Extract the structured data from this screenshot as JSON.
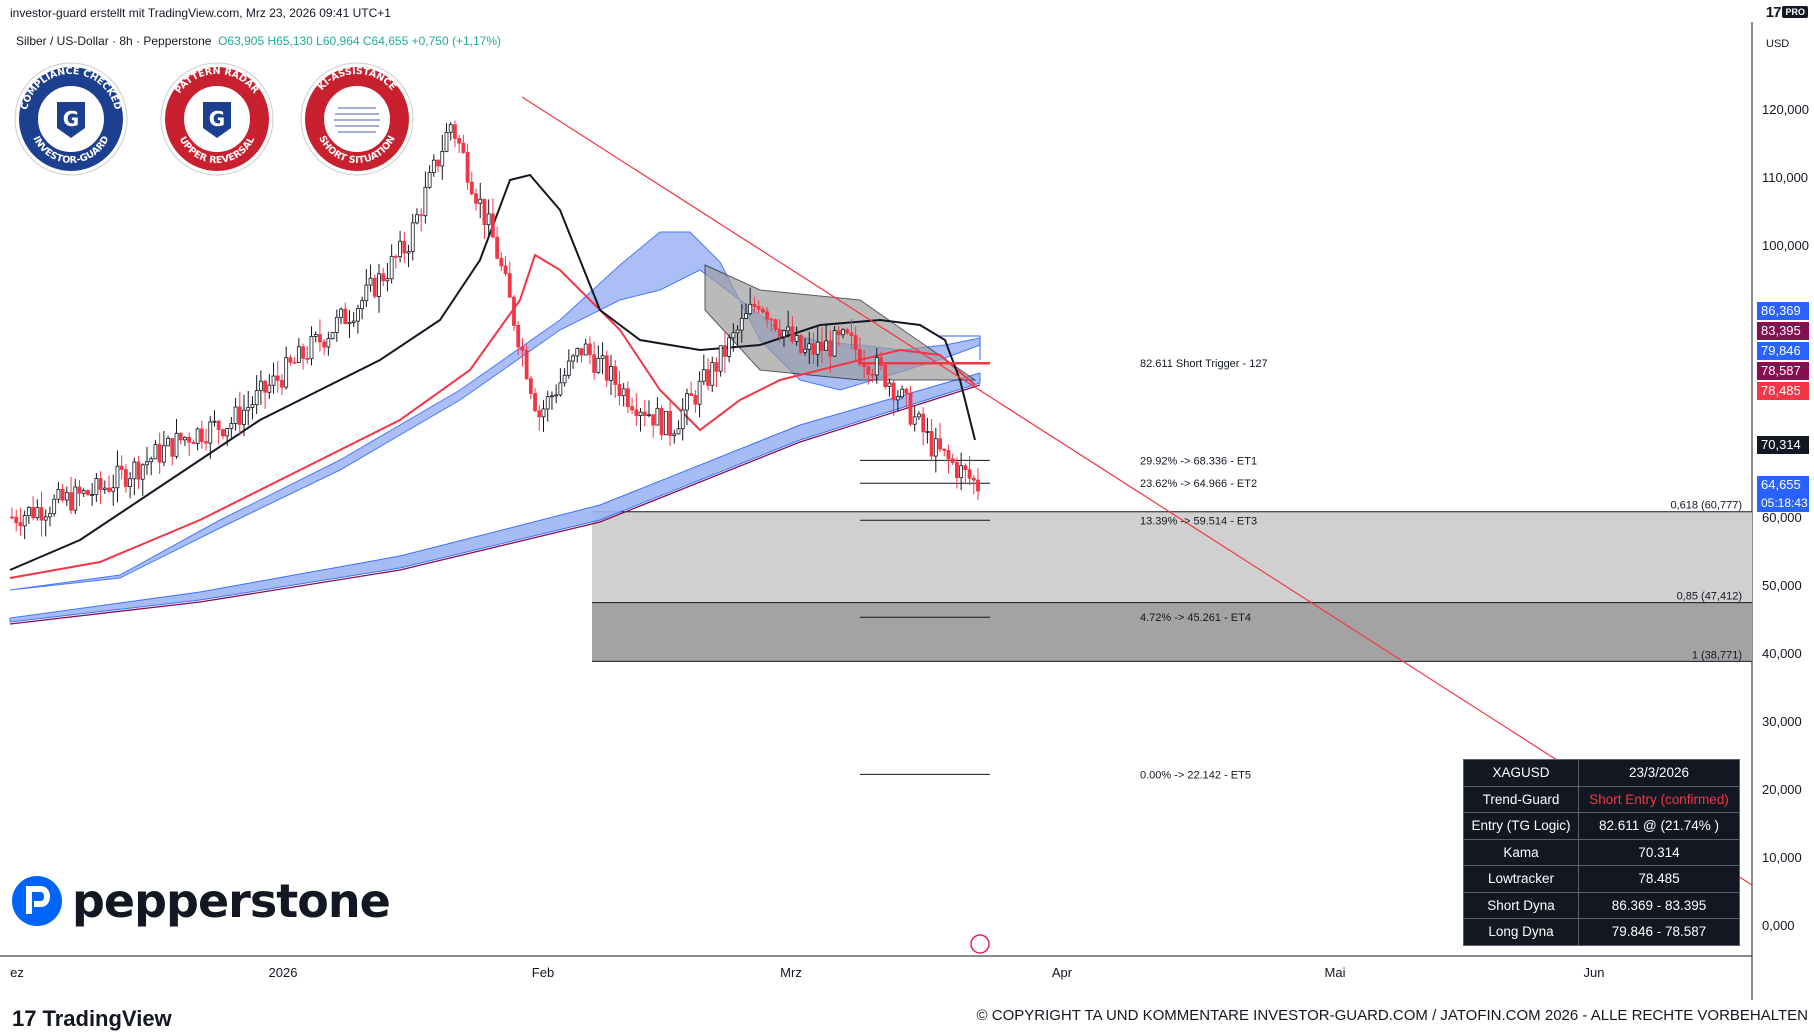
{
  "header": {
    "attribution": "investor-guard erstellt mit TradingView.com, Mrz 23, 2026 09:41 UTC+1",
    "symbol": "Silber / US-Dollar · 8h · Pepperstone",
    "ohlc": "O63,905  H65,130  L60,964  C64,655  +0,750 (+1,17%)",
    "currency": "USD",
    "tv_pro_label": "PRO"
  },
  "badges": [
    {
      "top_text": "COMPLIANCE CHECKED",
      "bottom_text": "INVESTOR-GUARD",
      "ring_color": "#1c3f8f"
    },
    {
      "top_text": "PATTERN RADAR",
      "bottom_text": "UPPER REVERSAL",
      "ring_color": "#c8202e"
    },
    {
      "top_text": "KI-ASSISTANCE",
      "bottom_text": "SHORT SITUATION",
      "ring_color": "#c8202e"
    }
  ],
  "chart_data": {
    "type": "candlestick",
    "title": "",
    "y_tick_labels": [
      "120,000",
      "110,000",
      "100,000",
      "60,000",
      "50,000",
      "40,000",
      "30,000",
      "20,000",
      "10,000",
      "0,000"
    ],
    "x_tick_labels": [
      "ez",
      "2026",
      "Feb",
      "Mrz",
      "Apr",
      "Mai",
      "Jun"
    ],
    "ylim": [
      -3,
      128
    ],
    "price_tags": [
      {
        "label": "86,369",
        "value": 86.369,
        "color": "#2962ff"
      },
      {
        "label": "83,395",
        "value": 83.395,
        "color": "#880e4f"
      },
      {
        "label": "79,846",
        "value": 79.846,
        "color": "#2962ff"
      },
      {
        "label": "78,587",
        "value": 78.587,
        "color": "#880e4f"
      },
      {
        "label": "78,485",
        "value": 78.485,
        "color": "#f23645"
      },
      {
        "label": "70,314",
        "value": 70.314,
        "color": "#131722"
      },
      {
        "label": "64,655",
        "value": 64.655,
        "color": "#2962ff",
        "countdown": "05:18:43"
      }
    ],
    "target_levels": [
      {
        "label": "82.611  Short Trigger - 127",
        "value": 82.611
      },
      {
        "label": "29.92% -> 68.336 - ET1",
        "value": 68.336
      },
      {
        "label": "23.62% -> 64.966 - ET2",
        "value": 64.966
      },
      {
        "label": "13.39% -> 59.514 - ET3",
        "value": 59.514
      },
      {
        "label": "4.72% -> 45.261 - ET4",
        "value": 45.261
      },
      {
        "label": "0.00% -> 22.142 - ET5",
        "value": 22.142
      }
    ],
    "fib_levels": [
      {
        "label": "0,618 (60,777)",
        "value": 60.777
      },
      {
        "label": "0,85 (47,412)",
        "value": 47.412
      },
      {
        "label": "1 (38,771)",
        "value": 38.771
      }
    ],
    "price_path": [
      {
        "x": "Dez",
        "close": 60.0
      },
      {
        "x": "Dez",
        "close": 62.0
      },
      {
        "x": "Dez",
        "close": 64.0
      },
      {
        "x": "Dez",
        "close": 68.0
      },
      {
        "x": "Dez",
        "close": 72.0
      },
      {
        "x": "2026",
        "close": 74.0
      },
      {
        "x": "Jan",
        "close": 80.0
      },
      {
        "x": "Jan",
        "close": 86.0
      },
      {
        "x": "Jan",
        "close": 92.0
      },
      {
        "x": "Jan",
        "close": 100.0
      },
      {
        "x": "Jan",
        "close": 118.0
      },
      {
        "x": "Jan",
        "close": 100.0
      },
      {
        "x": "Feb",
        "close": 75.0
      },
      {
        "x": "Feb",
        "close": 85.0
      },
      {
        "x": "Feb",
        "close": 78.0
      },
      {
        "x": "Feb",
        "close": 73.0
      },
      {
        "x": "Feb",
        "close": 82.0
      },
      {
        "x": "Mrz",
        "close": 92.0
      },
      {
        "x": "Mrz",
        "close": 84.0
      },
      {
        "x": "Mrz",
        "close": 86.0
      },
      {
        "x": "Mrz",
        "close": 80.0
      },
      {
        "x": "Mrz",
        "close": 70.0
      },
      {
        "x": "Mrz",
        "close": 64.655
      }
    ]
  },
  "table": {
    "rows": [
      {
        "key": "XAGUSD",
        "value": "23/3/2026",
        "highlight": false
      },
      {
        "key": "Trend-Guard",
        "value": "Short Entry (confirmed)",
        "highlight": true
      },
      {
        "key": "Entry (TG Logic)",
        "value": "82.611 @ (21.74% )",
        "highlight": false
      },
      {
        "key": "Kama",
        "value": "70.314",
        "highlight": false
      },
      {
        "key": "Lowtracker",
        "value": "78.485",
        "highlight": false
      },
      {
        "key": "Short Dyna",
        "value": "86.369 - 83.395",
        "highlight": false
      },
      {
        "key": "Long Dyna",
        "value": "79.846 - 78.587",
        "highlight": false
      }
    ]
  },
  "footer": {
    "broker_logo": "pepperstone",
    "platform_logo": "TradingView",
    "copyright": "© COPYRIGHT TA UND KOMMENTARE INVESTOR-GUARD.COM / JATOFIN.COM 2026 - ALLE RECHTE VORBEHALTEN"
  },
  "colors": {
    "up": "#131722",
    "down": "#f23645",
    "ema_red": "#f23645",
    "band_blue": "#9db5f5",
    "trend_line": "#f23645"
  }
}
